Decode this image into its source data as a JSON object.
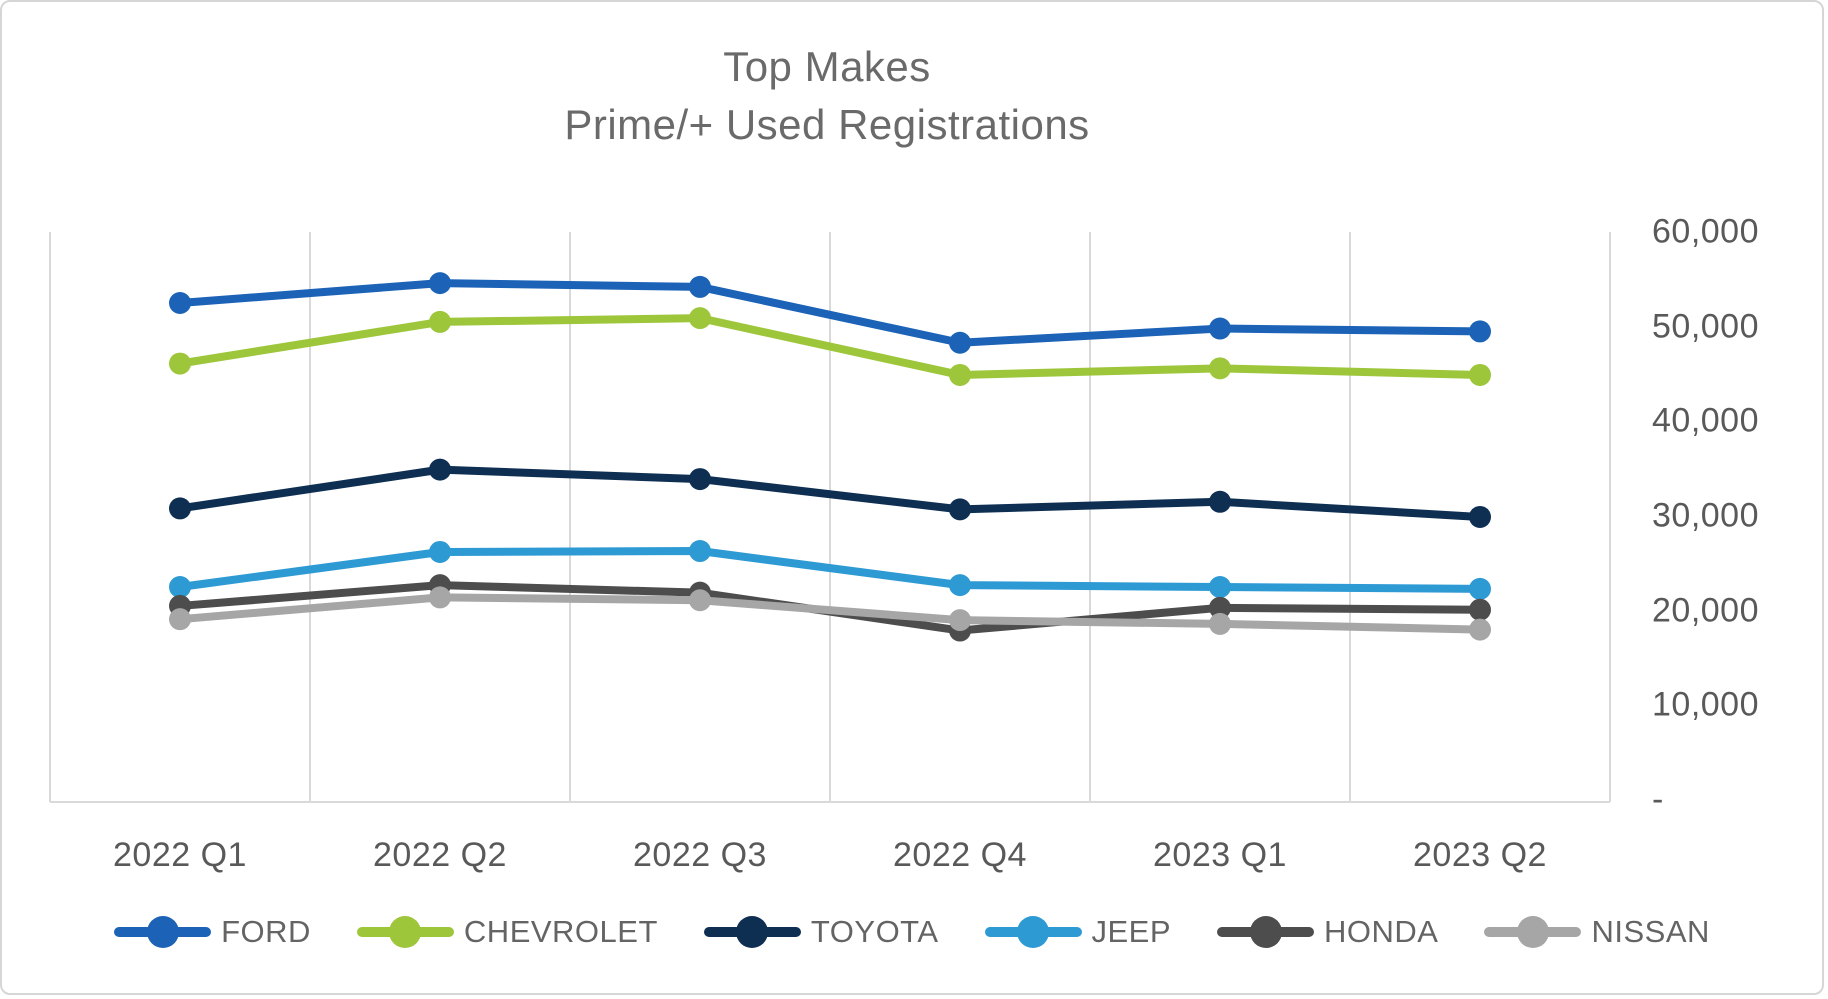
{
  "chart_data": {
    "type": "line",
    "title": "Top Makes",
    "subtitle": "Prime/+ Used Registrations",
    "categories": [
      "2022 Q1",
      "2022 Q2",
      "2022 Q3",
      "2022 Q4",
      "2023 Q1",
      "2023 Q2"
    ],
    "series": [
      {
        "name": "FORD",
        "color": "#1c63b7",
        "values": [
          52500,
          54600,
          54200,
          48300,
          49800,
          49500
        ]
      },
      {
        "name": "CHEVROLET",
        "color": "#9dc63b",
        "values": [
          46100,
          50500,
          50900,
          44900,
          45600,
          44900
        ]
      },
      {
        "name": "TOYOTA",
        "color": "#0e2f52",
        "values": [
          30800,
          34900,
          33900,
          30700,
          31500,
          29900
        ]
      },
      {
        "name": "JEEP",
        "color": "#2e9ad4",
        "values": [
          22500,
          26200,
          26300,
          22700,
          22500,
          22300
        ]
      },
      {
        "name": "HONDA",
        "color": "#4d4d4d",
        "values": [
          20500,
          22700,
          21900,
          17900,
          20300,
          20100
        ]
      },
      {
        "name": "NISSAN",
        "color": "#a6a6a6",
        "values": [
          19100,
          21400,
          21100,
          19000,
          18600,
          18000
        ]
      }
    ],
    "y_axis": {
      "position": "right",
      "ylim": [
        0,
        60000
      ],
      "tick_interval": 10000,
      "tick_labels": [
        "60,000",
        "50,000",
        "40,000",
        "30,000",
        "20,000",
        "10,000",
        "-"
      ],
      "tick_values": [
        60000,
        50000,
        40000,
        30000,
        20000,
        10000,
        0
      ]
    },
    "x_axis": {
      "tick_labels": [
        "2022 Q1",
        "2022 Q2",
        "2022 Q3",
        "2022 Q4",
        "2023 Q1",
        "2023 Q2"
      ]
    },
    "grid": "vertical-only",
    "legend_position": "bottom"
  },
  "colors": {
    "title_text": "#6a6a6a",
    "axis_text": "#595959",
    "legend_text": "#646464",
    "gridline": "#d9d9d9",
    "background": "#ffffff",
    "card_border": "#d6d6d6"
  }
}
